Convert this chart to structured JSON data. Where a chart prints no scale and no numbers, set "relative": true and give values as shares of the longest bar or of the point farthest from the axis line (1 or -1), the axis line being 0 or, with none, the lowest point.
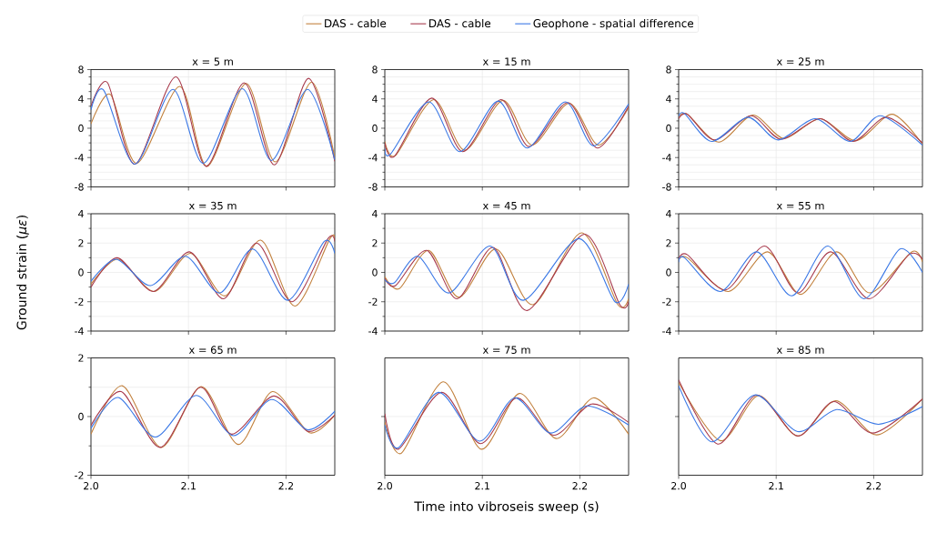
{
  "chart_data": [
    {
      "type": "line",
      "title": "x = 5 m",
      "legend": "top",
      "xlim": [
        2.0,
        2.25
      ],
      "xticks": [
        {
          "value": 2.0,
          "label": null
        },
        {
          "value": 2.1,
          "label": null
        },
        {
          "value": 2.2,
          "label": null
        }
      ],
      "ylim": [
        -8,
        8
      ],
      "yticks": [
        -8,
        -4,
        0,
        4,
        8
      ],
      "grid": true,
      "tick_labels": "y",
      "series": [
        {
          "name": "DAS - cable",
          "color": "#c2813d",
          "x": [
            2.0,
            2.02,
            2.047,
            2.091,
            2.119,
            2.159,
            2.189,
            2.226,
            2.25
          ],
          "values": [
            0.6,
            4.6,
            -4.8,
            5.7,
            -5.2,
            6.1,
            -4.6,
            6.3,
            -4.0
          ]
        },
        {
          "name": "DAS - cable",
          "color": "#a83b4d",
          "x": [
            2.0,
            2.017,
            2.045,
            2.087,
            2.118,
            2.157,
            2.188,
            2.223,
            2.25
          ],
          "values": [
            3.0,
            6.2,
            -4.9,
            7.0,
            -5.2,
            6.2,
            -5.0,
            6.8,
            -4.5
          ]
        },
        {
          "name": "Geophone - spatial difference",
          "color": "#3a78e6",
          "x": [
            2.0,
            2.013,
            2.045,
            2.084,
            2.115,
            2.155,
            2.185,
            2.222,
            2.25
          ],
          "values": [
            2.5,
            5.2,
            -4.9,
            5.3,
            -4.8,
            5.4,
            -4.4,
            5.3,
            -4.3
          ]
        }
      ]
    },
    {
      "type": "line",
      "title": "x = 15 m",
      "xlim": [
        2.0,
        2.25
      ],
      "xticks": [
        {
          "value": 2.0,
          "label": null
        },
        {
          "value": 2.1,
          "label": null
        },
        {
          "value": 2.2,
          "label": null
        }
      ],
      "ylim": [
        -8,
        8
      ],
      "yticks": [
        -8,
        -4,
        0,
        4,
        8
      ],
      "grid": true,
      "tick_labels": "y",
      "series": [
        {
          "color": "#c2813d",
          "x": [
            2.0,
            2.011,
            2.05,
            2.082,
            2.121,
            2.151,
            2.189,
            2.219,
            2.25
          ],
          "values": [
            -1.8,
            -3.7,
            3.9,
            -3.0,
            3.8,
            -2.3,
            3.4,
            -2.3,
            2.8
          ]
        },
        {
          "color": "#a83b4d",
          "x": [
            2.0,
            2.01,
            2.048,
            2.08,
            2.119,
            2.148,
            2.1875,
            2.218,
            2.25
          ],
          "values": [
            -2.0,
            -3.8,
            4.1,
            -3.2,
            3.9,
            -2.5,
            3.5,
            -2.7,
            3.0
          ]
        },
        {
          "color": "#3a78e6",
          "x": [
            2.0,
            2.006,
            2.045,
            2.077,
            2.116,
            2.146,
            2.185,
            2.214,
            2.25
          ],
          "values": [
            -2.8,
            -3.5,
            3.6,
            -3.2,
            3.7,
            -2.7,
            3.6,
            -2.4,
            3.3
          ]
        }
      ]
    },
    {
      "type": "line",
      "title": "x = 25 m",
      "xlim": [
        2.0,
        2.25
      ],
      "xticks": [
        {
          "value": 2.0,
          "label": null
        },
        {
          "value": 2.1,
          "label": null
        },
        {
          "value": 2.2,
          "label": null
        }
      ],
      "ylim": [
        -8,
        8
      ],
      "yticks": [
        -8,
        -4,
        0,
        4,
        8
      ],
      "grid": true,
      "tick_labels": "y",
      "series": [
        {
          "color": "#c2813d",
          "x": [
            2.0,
            2.009,
            2.041,
            2.076,
            2.108,
            2.145,
            2.182,
            2.219,
            2.25
          ],
          "values": [
            1.5,
            1.9,
            -1.9,
            1.8,
            -1.4,
            1.3,
            -1.7,
            1.9,
            -2.2
          ]
        },
        {
          "color": "#a83b4d",
          "x": [
            2.0,
            2.009,
            2.037,
            2.074,
            2.105,
            2.145,
            2.179,
            2.213,
            2.25
          ],
          "values": [
            1.3,
            1.9,
            -1.6,
            1.7,
            -1.5,
            1.3,
            -1.8,
            1.5,
            -2.0
          ]
        },
        {
          "color": "#3a78e6",
          "x": [
            2.0,
            2.006,
            2.034,
            2.071,
            2.102,
            2.14,
            2.176,
            2.207,
            2.25
          ],
          "values": [
            1.6,
            2.0,
            -1.8,
            1.5,
            -1.6,
            1.3,
            -1.8,
            1.7,
            -2.3
          ]
        }
      ]
    },
    {
      "type": "line",
      "title": "x = 35 m",
      "ylabel": "Ground strain (*με*)",
      "xlim": [
        2.0,
        2.25
      ],
      "xticks": [
        {
          "value": 2.0,
          "label": null
        },
        {
          "value": 2.1,
          "label": null
        },
        {
          "value": 2.2,
          "label": null
        }
      ],
      "ylim": [
        -4,
        4
      ],
      "yticks": [
        -4,
        -2,
        0,
        2,
        4
      ],
      "grid": true,
      "tick_labels": "y",
      "series": [
        {
          "color": "#c2813d",
          "x": [
            2.0,
            2.028,
            2.065,
            2.102,
            2.1375,
            2.174,
            2.209,
            2.245,
            2.25
          ],
          "values": [
            -0.8,
            0.9,
            -1.3,
            1.3,
            -1.6,
            2.2,
            -2.3,
            2.3,
            2.2
          ]
        },
        {
          "color": "#a83b4d",
          "x": [
            2.0,
            2.027,
            2.064,
            2.101,
            2.136,
            2.17,
            2.206,
            2.243,
            2.25
          ],
          "values": [
            -1.0,
            1.0,
            -1.3,
            1.4,
            -1.8,
            2.0,
            -2.0,
            2.3,
            2.1
          ]
        },
        {
          "color": "#3a78e6",
          "x": [
            2.0,
            2.026,
            2.061,
            2.097,
            2.132,
            2.166,
            2.202,
            2.239,
            2.25
          ],
          "values": [
            -0.6,
            0.9,
            -0.9,
            1.1,
            -1.4,
            1.6,
            -1.9,
            2.1,
            1.3
          ]
        }
      ]
    },
    {
      "type": "line",
      "title": "x = 45 m",
      "xlim": [
        2.0,
        2.25
      ],
      "xticks": [
        {
          "value": 2.0,
          "label": null
        },
        {
          "value": 2.1,
          "label": null
        },
        {
          "value": 2.2,
          "label": null
        }
      ],
      "ylim": [
        -4,
        4
      ],
      "yticks": [
        -4,
        -2,
        0,
        2,
        4
      ],
      "grid": true,
      "tick_labels": "y",
      "series": [
        {
          "color": "#c2813d",
          "x": [
            2.0,
            2.015,
            2.045,
            2.076,
            2.114,
            2.152,
            2.2017,
            2.239,
            2.25
          ],
          "values": [
            -0.3,
            -1.1,
            1.5,
            -1.7,
            1.6,
            -2.2,
            2.7,
            -2.2,
            -1.8
          ]
        },
        {
          "color": "#a83b4d",
          "x": [
            2.0,
            2.011,
            2.043,
            2.074,
            2.111,
            2.146,
            2.2045,
            2.241,
            2.25
          ],
          "values": [
            -0.4,
            -0.9,
            1.5,
            -1.8,
            1.7,
            -2.6,
            2.6,
            -2.2,
            -2.0
          ]
        },
        {
          "color": "#3a78e6",
          "x": [
            2.0,
            2.01,
            2.034,
            2.066,
            2.108,
            2.142,
            2.199,
            2.236,
            2.25
          ],
          "values": [
            -0.5,
            -0.7,
            1.1,
            -1.4,
            1.8,
            -1.9,
            2.3,
            -2.0,
            -0.8
          ]
        }
      ]
    },
    {
      "type": "line",
      "title": "x = 55 m",
      "xlim": [
        2.0,
        2.25
      ],
      "xticks": [
        {
          "value": 2.0,
          "label": null
        },
        {
          "value": 2.1,
          "label": null
        },
        {
          "value": 2.2,
          "label": null
        }
      ],
      "ylim": [
        -4,
        4
      ],
      "yticks": [
        -4,
        -2,
        0,
        2,
        4
      ],
      "grid": true,
      "tick_labels": "y",
      "series": [
        {
          "color": "#c2813d",
          "x": [
            2.0,
            2.009,
            2.051,
            2.091,
            2.125,
            2.162,
            2.196,
            2.239,
            2.25
          ],
          "values": [
            0.8,
            1.0,
            -1.3,
            1.4,
            -1.5,
            1.4,
            -1.4,
            1.4,
            0.7
          ]
        },
        {
          "color": "#a83b4d",
          "x": [
            2.0,
            2.009,
            2.048,
            2.088,
            2.122,
            2.156,
            2.195,
            2.236,
            2.25
          ],
          "values": [
            0.9,
            1.2,
            -1.2,
            1.8,
            -1.4,
            1.4,
            -1.8,
            1.2,
            0.9
          ]
        },
        {
          "color": "#3a78e6",
          "x": [
            2.0,
            2.006,
            2.043,
            2.08,
            2.116,
            2.153,
            2.19,
            2.227,
            2.25
          ],
          "values": [
            0.7,
            1.0,
            -1.3,
            1.4,
            -1.6,
            1.8,
            -1.8,
            1.6,
            0.0
          ]
        }
      ]
    },
    {
      "type": "line",
      "title": "x = 65 m",
      "xlim": [
        2.0,
        2.25
      ],
      "xticks": [
        {
          "value": 2.0,
          "label": "2.0"
        },
        {
          "value": 2.1,
          "label": "2.1"
        },
        {
          "value": 2.2,
          "label": "2.2"
        }
      ],
      "ylim": [
        -2,
        2
      ],
      "yticks": [
        -2,
        0,
        2
      ],
      "grid": true,
      "series": [
        {
          "color": "#c2813d",
          "x": [
            2.0,
            2.032,
            2.072,
            2.113,
            2.151,
            2.186,
            2.224,
            2.25
          ],
          "values": [
            -0.6,
            1.05,
            -1.05,
            1.02,
            -0.95,
            0.85,
            -0.55,
            0.05
          ]
        },
        {
          "color": "#a83b4d",
          "x": [
            2.0,
            2.031,
            2.071,
            2.112,
            2.144,
            2.1875,
            2.222,
            2.25
          ],
          "values": [
            -0.3,
            0.85,
            -1.05,
            1.0,
            -0.6,
            0.7,
            -0.5,
            0.05
          ]
        },
        {
          "color": "#3a78e6",
          "x": [
            2.0,
            2.028,
            2.066,
            2.108,
            2.146,
            2.185,
            2.222,
            2.25
          ],
          "values": [
            -0.4,
            0.65,
            -0.7,
            0.72,
            -0.65,
            0.58,
            -0.45,
            0.18
          ]
        }
      ]
    },
    {
      "type": "line",
      "title": "x = 75 m",
      "xlabel": "Time into vibroseis sweep (s)",
      "relative": true,
      "xlim": [
        2.0,
        2.25
      ],
      "xticks": [
        {
          "value": 2.0,
          "label": "2.0"
        },
        {
          "value": 2.1,
          "label": "2.1"
        },
        {
          "value": 2.2,
          "label": "2.2"
        }
      ],
      "grid": true,
      "tick_labels": "x",
      "series": [
        {
          "color": "#c2813d",
          "x": [
            2.0,
            2.017,
            2.06,
            2.099,
            2.138,
            2.176,
            2.214,
            2.25
          ],
          "values": [
            -0.15,
            -1,
            0.95,
            -0.89,
            0.63,
            -0.6,
            0.51,
            -0.48
          ]
        },
        {
          "color": "#a83b4d",
          "x": [
            2.0,
            2.014,
            2.058,
            2.098,
            2.135,
            2.173,
            2.212,
            2.25
          ],
          "values": [
            0.08,
            -0.89,
            0.66,
            -0.74,
            0.51,
            -0.51,
            0.34,
            -0.16
          ]
        },
        {
          "color": "#3a78e6",
          "x": [
            2.0,
            2.014,
            2.055,
            2.097,
            2.133,
            2.17,
            2.207,
            2.25
          ],
          "values": [
            -0.23,
            -0.85,
            0.66,
            -0.67,
            0.51,
            -0.45,
            0.29,
            -0.23
          ]
        }
      ]
    },
    {
      "type": "line",
      "title": "x = 85 m",
      "relative": true,
      "xlim": [
        2.0,
        2.25
      ],
      "xticks": [
        {
          "value": 2.0,
          "label": "2.0"
        },
        {
          "value": 2.1,
          "label": "2.1"
        },
        {
          "value": 2.2,
          "label": "2.2"
        }
      ],
      "grid": true,
      "tick_labels": "x",
      "series": [
        {
          "color": "#c2813d",
          "x": [
            2.0,
            2.043,
            2.082,
            2.122,
            2.161,
            2.203,
            2.25
          ],
          "values": [
            0.93,
            -0.66,
            0.57,
            -0.53,
            0.43,
            -0.5,
            0.48
          ]
        },
        {
          "color": "#a83b4d",
          "x": [
            2.0,
            2.04,
            2.08,
            2.122,
            2.159,
            2.199,
            2.25
          ],
          "values": [
            1,
            -0.75,
            0.59,
            -0.53,
            0.41,
            -0.45,
            0.48
          ]
        },
        {
          "color": "#3a78e6",
          "x": [
            2.0,
            2.034,
            2.078,
            2.122,
            2.162,
            2.205,
            2.25
          ],
          "values": [
            0.84,
            -0.69,
            0.59,
            -0.41,
            0.19,
            -0.21,
            0.27
          ]
        }
      ]
    }
  ]
}
